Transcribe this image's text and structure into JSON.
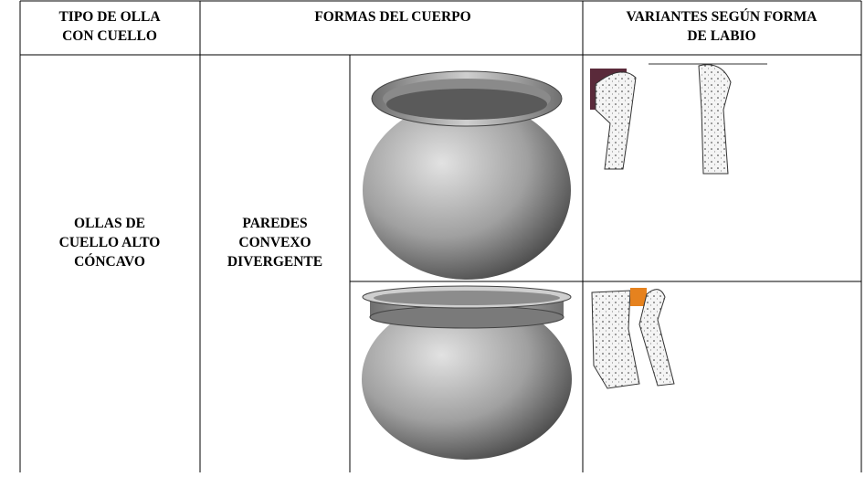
{
  "table": {
    "header": [
      [
        "TIPO DE OLLA",
        "CON CUELLO"
      ],
      [
        "FORMAS DEL CUERPO"
      ],
      [
        "VARIANTES SEGÚN FORMA",
        "DE LABIO"
      ]
    ],
    "rows": [
      [
        [
          "OLLAS DE",
          "CUELLO ALTO",
          "CÓNCAVO"
        ],
        [
          "PAREDES",
          "CONVEXO",
          "DIVERGENTE"
        ]
      ]
    ]
  }
}
